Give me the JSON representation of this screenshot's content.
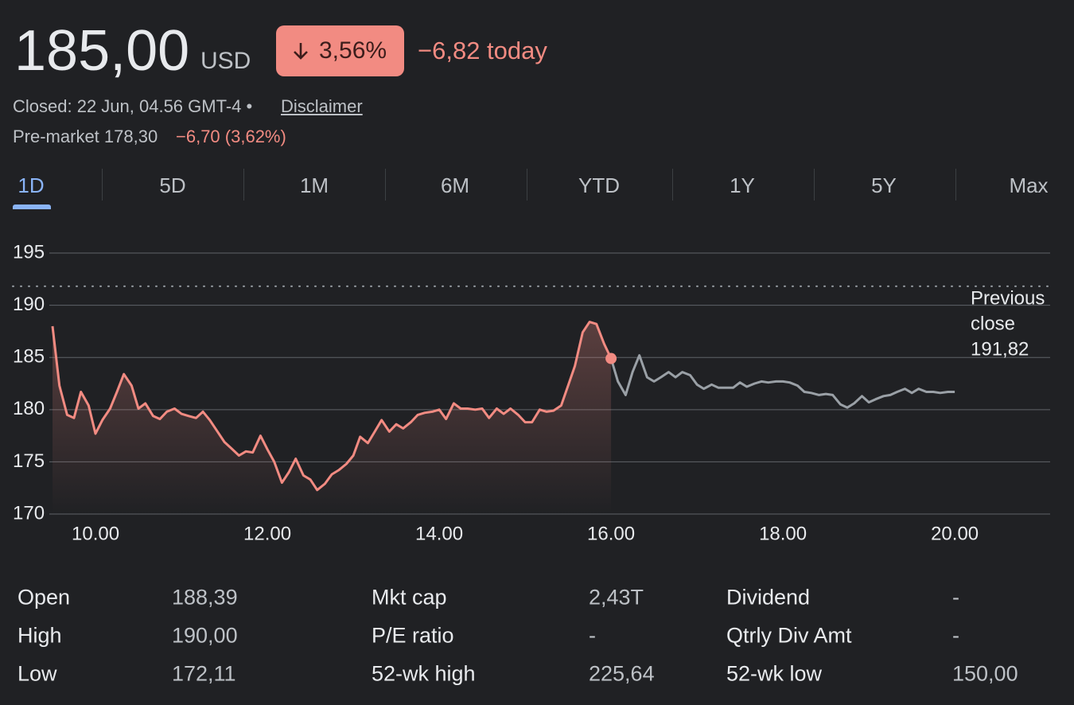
{
  "header": {
    "price": "185,00",
    "currency": "USD",
    "change_percent": "3,56%",
    "change_today": "−6,82 today",
    "status": "Closed: 22 Jun, 04.56 GMT-4 •",
    "disclaimer": "Disclaimer",
    "premarket_label": "Pre-market 178,30",
    "premarket_change": "−6,70 (3,62%)"
  },
  "tabs": {
    "items": [
      "1D",
      "5D",
      "1M",
      "6M",
      "YTD",
      "1Y",
      "5Y",
      "Max"
    ],
    "active": 0
  },
  "chart_data": {
    "type": "line",
    "xlim": [
      9.52,
      21.11
    ],
    "ylim": [
      170,
      197
    ],
    "xticks": [
      {
        "value": 10,
        "label": "10.00"
      },
      {
        "value": 12,
        "label": "12.00"
      },
      {
        "value": 14,
        "label": "14.00"
      },
      {
        "value": 16,
        "label": "16.00"
      },
      {
        "value": 18,
        "label": "18.00"
      },
      {
        "value": 20,
        "label": "20.00"
      }
    ],
    "yticks": [
      170,
      175,
      180,
      185,
      190,
      195
    ],
    "grid": true,
    "previous_close": {
      "value": 191.82,
      "label": "191,82"
    },
    "previous_close_text": [
      "Previous",
      "close"
    ],
    "series": [
      {
        "color": "#f28b82",
        "fill_area": true,
        "x": [
          9.5,
          9.58,
          9.67,
          9.75,
          9.83,
          9.92,
          10,
          10.08,
          10.17,
          10.25,
          10.33,
          10.42,
          10.5,
          10.58,
          10.67,
          10.75,
          10.83,
          10.92,
          11,
          11.08,
          11.17,
          11.25,
          11.33,
          11.42,
          11.5,
          11.58,
          11.67,
          11.75,
          11.83,
          11.92,
          12,
          12.08,
          12.17,
          12.25,
          12.33,
          12.42,
          12.5,
          12.58,
          12.67,
          12.75,
          12.83,
          12.92,
          13,
          13.08,
          13.17,
          13.25,
          13.33,
          13.42,
          13.5,
          13.58,
          13.67,
          13.75,
          13.83,
          13.92,
          14,
          14.08,
          14.17,
          14.25,
          14.33,
          14.42,
          14.5,
          14.58,
          14.67,
          14.75,
          14.83,
          14.92,
          15,
          15.08,
          15.17,
          15.25,
          15.33,
          15.42,
          15.5,
          15.58,
          15.67,
          15.75,
          15.83,
          15.92,
          16
        ],
        "values": [
          188.0,
          182.3,
          179.5,
          179.2,
          181.7,
          180.4,
          177.7,
          179.0,
          180.1,
          181.7,
          183.4,
          182.3,
          180.1,
          180.6,
          179.4,
          179.1,
          179.8,
          180.1,
          179.6,
          179.4,
          179.2,
          179.8,
          179.0,
          177.9,
          176.9,
          176.3,
          175.6,
          176.0,
          175.9,
          177.5,
          176.2,
          175.0,
          173.0,
          174.0,
          175.3,
          173.7,
          173.3,
          172.3,
          172.9,
          173.8,
          174.2,
          174.8,
          175.6,
          177.4,
          176.8,
          177.9,
          179.0,
          177.9,
          178.6,
          178.2,
          178.8,
          179.5,
          179.7,
          179.8,
          180.0,
          179.1,
          180.6,
          180.1,
          180.1,
          180.0,
          180.1,
          179.2,
          180.1,
          179.6,
          180.1,
          179.5,
          178.8,
          178.8,
          180.0,
          179.8,
          179.9,
          180.4,
          182.3,
          184.2,
          187.4,
          188.4,
          188.2,
          186.3,
          184.9
        ]
      },
      {
        "color": "#9aa0a6",
        "fill_area": false,
        "x": [
          16,
          16.08,
          16.17,
          16.25,
          16.33,
          16.42,
          16.5,
          16.58,
          16.67,
          16.75,
          16.83,
          16.92,
          17,
          17.08,
          17.17,
          17.25,
          17.33,
          17.42,
          17.5,
          17.58,
          17.67,
          17.75,
          17.83,
          17.92,
          18,
          18.08,
          18.17,
          18.25,
          18.33,
          18.42,
          18.5,
          18.58,
          18.67,
          18.75,
          18.83,
          18.92,
          19,
          19.08,
          19.17,
          19.25,
          19.33,
          19.42,
          19.5,
          19.58,
          19.67,
          19.75,
          19.83,
          19.92,
          20
        ],
        "values": [
          184.9,
          182.7,
          181.4,
          183.6,
          185.2,
          183.1,
          182.7,
          183.1,
          183.6,
          183.1,
          183.6,
          183.3,
          182.4,
          182.0,
          182.4,
          182.1,
          182.1,
          182.1,
          182.6,
          182.2,
          182.5,
          182.7,
          182.6,
          182.7,
          182.7,
          182.6,
          182.3,
          181.7,
          181.6,
          181.4,
          181.5,
          181.4,
          180.5,
          180.2,
          180.6,
          181.3,
          180.7,
          181.0,
          181.3,
          181.4,
          181.7,
          182.0,
          181.6,
          182.0,
          181.7,
          181.7,
          181.6,
          181.7,
          181.7
        ]
      }
    ]
  },
  "stats": {
    "rows": [
      [
        {
          "label": "Open",
          "value": "188,39"
        },
        {
          "label": "Mkt cap",
          "value": "2,43T"
        },
        {
          "label": "Dividend",
          "value": "-"
        }
      ],
      [
        {
          "label": "High",
          "value": "190,00"
        },
        {
          "label": "P/E ratio",
          "value": "-"
        },
        {
          "label": "Qtrly Div Amt",
          "value": "-"
        }
      ],
      [
        {
          "label": "Low",
          "value": "172,11"
        },
        {
          "label": "52-wk high",
          "value": "225,64"
        },
        {
          "label": "52-wk low",
          "value": "150,00"
        }
      ]
    ]
  }
}
